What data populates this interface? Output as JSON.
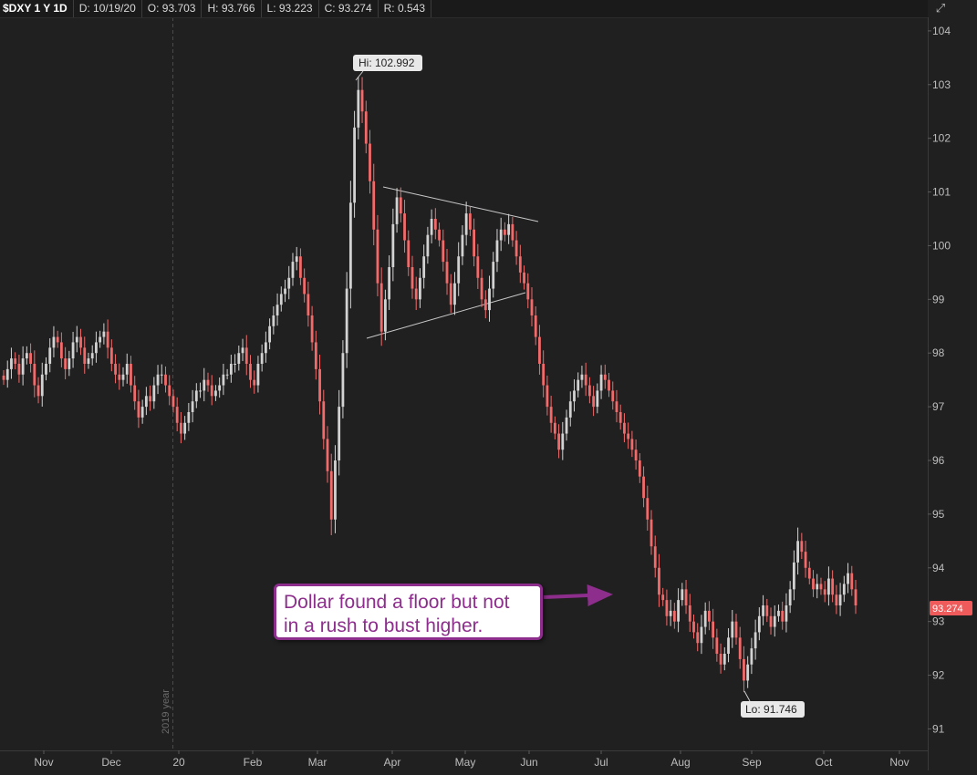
{
  "header": {
    "symbol": "$DXY 1 Y 1D",
    "date": "D: 10/19/20",
    "open": "O: 93.703",
    "high": "H: 93.766",
    "low": "L: 93.223",
    "close": "C: 93.274",
    "range": "R: 0.543",
    "expand_icon": "expand-icon"
  },
  "annotation": {
    "text_line1": "Dollar found a floor but not",
    "text_line2": "in a rush to bust higher.",
    "arrow_color": "#8d2d8c"
  },
  "colors": {
    "background": "#202020",
    "up_candle": "#d2d2d2",
    "down_candle": "#f26a6a",
    "price_tag": "#ef5b5b",
    "annotation": "#8d2d8c"
  },
  "chart_data": {
    "type": "candlestick",
    "title": "$DXY 1 Y 1D",
    "ylim": [
      90.6,
      104.1
    ],
    "y_ticks": [
      91,
      92,
      93,
      94,
      95,
      96,
      97,
      98,
      99,
      100,
      101,
      102,
      103,
      104
    ],
    "x_tick_labels": [
      "Nov",
      "Dec",
      "20",
      "Feb",
      "Mar",
      "Apr",
      "May",
      "Jun",
      "Jul",
      "Aug",
      "Sep",
      "Oct",
      "Nov"
    ],
    "year_divider_label": "2019 year",
    "grid": false,
    "last_price": "93.274",
    "high_marker": "Hi: 102.992",
    "low_marker": "Lo: 91.746",
    "closes": [
      97.5,
      97.7,
      97.9,
      97.8,
      97.6,
      97.9,
      98.0,
      97.8,
      97.4,
      97.2,
      97.6,
      97.8,
      98.1,
      98.3,
      98.2,
      97.9,
      97.7,
      97.9,
      98.2,
      98.3,
      98.1,
      97.8,
      97.9,
      98.0,
      98.2,
      98.3,
      98.4,
      98.1,
      97.8,
      97.6,
      97.5,
      97.6,
      97.8,
      97.4,
      97.1,
      96.8,
      97.0,
      97.2,
      97.1,
      97.4,
      97.6,
      97.6,
      97.4,
      97.2,
      97.0,
      96.7,
      96.5,
      96.7,
      96.9,
      97.1,
      97.3,
      97.3,
      97.5,
      97.4,
      97.2,
      97.3,
      97.4,
      97.6,
      97.6,
      97.8,
      97.8,
      98.0,
      98.1,
      97.8,
      97.5,
      97.4,
      97.8,
      98.0,
      98.2,
      98.5,
      98.7,
      98.9,
      99.1,
      99.2,
      99.4,
      99.7,
      99.8,
      99.4,
      99.1,
      98.7,
      98.2,
      97.7,
      97.1,
      96.4,
      95.8,
      94.9,
      96.0,
      97.0,
      98.0,
      99.2,
      100.8,
      102.2,
      102.9,
      102.5,
      101.9,
      101.2,
      100.3,
      99.3,
      98.4,
      99.0,
      99.6,
      100.4,
      100.9,
      100.6,
      100.1,
      99.6,
      99.2,
      99.0,
      99.4,
      99.8,
      100.2,
      100.5,
      100.3,
      100.1,
      99.7,
      99.3,
      98.9,
      99.3,
      99.8,
      100.2,
      100.6,
      100.3,
      99.8,
      99.4,
      99.0,
      98.8,
      99.2,
      99.7,
      100.1,
      100.3,
      100.2,
      100.4,
      100.1,
      99.8,
      99.5,
      99.3,
      99.0,
      98.7,
      98.3,
      97.8,
      97.4,
      97.0,
      96.7,
      96.5,
      96.2,
      96.5,
      96.8,
      97.1,
      97.3,
      97.5,
      97.6,
      97.4,
      97.2,
      97.0,
      97.3,
      97.6,
      97.5,
      97.3,
      97.1,
      96.9,
      96.7,
      96.5,
      96.4,
      96.2,
      96.0,
      95.7,
      95.3,
      94.9,
      94.4,
      94.0,
      93.5,
      93.4,
      93.1,
      93.2,
      93.0,
      93.4,
      93.6,
      93.3,
      93.0,
      92.8,
      92.6,
      92.9,
      93.2,
      93.0,
      92.7,
      92.4,
      92.2,
      92.4,
      92.7,
      93.0,
      92.7,
      92.3,
      91.9,
      92.2,
      92.5,
      92.8,
      93.1,
      93.3,
      93.1,
      92.9,
      93.1,
      93.2,
      93.0,
      93.3,
      93.6,
      94.1,
      94.5,
      94.3,
      94.0,
      93.8,
      93.6,
      93.7,
      93.6,
      93.5,
      93.8,
      93.5,
      93.3,
      93.5,
      93.7,
      93.9,
      93.6,
      93.3
    ]
  }
}
